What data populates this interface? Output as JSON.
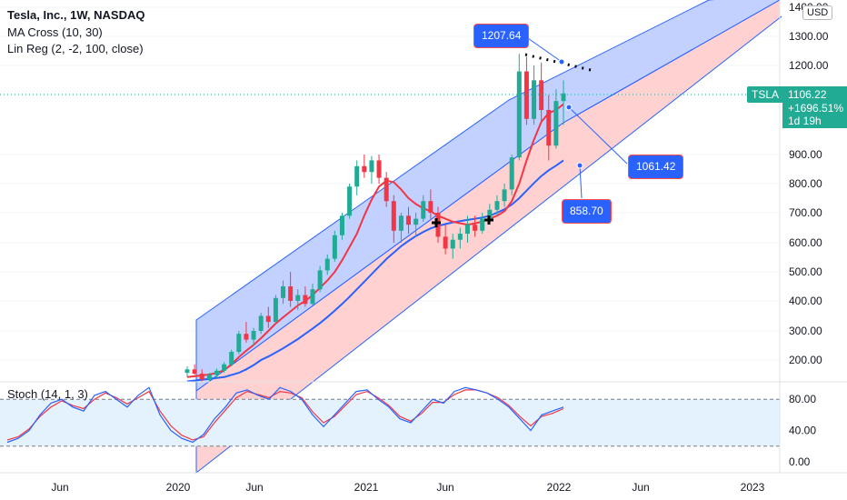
{
  "legend": {
    "title": "Tesla, Inc., 1W, NASDAQ",
    "ma": "MA Cross (10, 30)",
    "linreg": "Lin Reg (2, -2, 100, close)"
  },
  "stoch_label": "Stoch (14, 1, 3)",
  "currency": "USD",
  "symbol_tag": "TSLA",
  "current": {
    "price": "1106.22",
    "change": "+1696.51%",
    "countdown": "1d 19h"
  },
  "annotations": {
    "upper": "1207.64",
    "mid": "1061.42",
    "lower": "858.70"
  },
  "colors": {
    "up": "#22ab94",
    "down": "#f23645",
    "ma_fast": "#f23645",
    "ma_slow": "#2962ff",
    "channel_upper": "#b7c9ff",
    "channel_lower": "#ffc9c9",
    "stoch_k": "#2962ff",
    "stoch_d": "#f23645",
    "stoch_band": "#e3f2fd"
  },
  "chart_data": {
    "type": "candlestick",
    "price_axis": {
      "ticks": [
        "1400.00",
        "1300.00",
        "1200.00",
        "900.00",
        "800.00",
        "700.00",
        "600.00",
        "500.00",
        "400.00",
        "300.00",
        "200.00"
      ]
    },
    "time_axis": [
      "Jun",
      "2020",
      "Jun",
      "2021",
      "Jun",
      "2022",
      "Jun",
      "2023"
    ],
    "candles": [
      {
        "o": 170,
        "h": 185,
        "l": 160,
        "c": 178
      },
      {
        "o": 178,
        "h": 190,
        "l": 165,
        "c": 168
      },
      {
        "o": 168,
        "h": 178,
        "l": 150,
        "c": 155
      },
      {
        "o": 155,
        "h": 170,
        "l": 148,
        "c": 165
      },
      {
        "o": 165,
        "h": 180,
        "l": 158,
        "c": 175
      },
      {
        "o": 175,
        "h": 195,
        "l": 170,
        "c": 190
      },
      {
        "o": 190,
        "h": 235,
        "l": 185,
        "c": 228
      },
      {
        "o": 228,
        "h": 300,
        "l": 220,
        "c": 290
      },
      {
        "o": 290,
        "h": 330,
        "l": 260,
        "c": 270
      },
      {
        "o": 270,
        "h": 310,
        "l": 250,
        "c": 300
      },
      {
        "o": 300,
        "h": 360,
        "l": 290,
        "c": 350
      },
      {
        "o": 350,
        "h": 380,
        "l": 310,
        "c": 330
      },
      {
        "o": 330,
        "h": 420,
        "l": 320,
        "c": 410
      },
      {
        "o": 410,
        "h": 470,
        "l": 390,
        "c": 450
      },
      {
        "o": 450,
        "h": 500,
        "l": 380,
        "c": 400
      },
      {
        "o": 400,
        "h": 440,
        "l": 370,
        "c": 420
      },
      {
        "o": 420,
        "h": 450,
        "l": 380,
        "c": 390
      },
      {
        "o": 390,
        "h": 460,
        "l": 385,
        "c": 440
      },
      {
        "o": 440,
        "h": 520,
        "l": 430,
        "c": 505
      },
      {
        "o": 505,
        "h": 560,
        "l": 490,
        "c": 545
      },
      {
        "o": 545,
        "h": 640,
        "l": 535,
        "c": 625
      },
      {
        "o": 625,
        "h": 700,
        "l": 610,
        "c": 690
      },
      {
        "o": 690,
        "h": 800,
        "l": 680,
        "c": 790
      },
      {
        "o": 790,
        "h": 880,
        "l": 760,
        "c": 860
      },
      {
        "o": 860,
        "h": 900,
        "l": 820,
        "c": 840
      },
      {
        "o": 840,
        "h": 895,
        "l": 800,
        "c": 880
      },
      {
        "o": 880,
        "h": 900,
        "l": 800,
        "c": 820
      },
      {
        "o": 820,
        "h": 840,
        "l": 720,
        "c": 740
      },
      {
        "o": 740,
        "h": 760,
        "l": 600,
        "c": 640
      },
      {
        "o": 640,
        "h": 700,
        "l": 600,
        "c": 690
      },
      {
        "o": 690,
        "h": 720,
        "l": 630,
        "c": 660
      },
      {
        "o": 660,
        "h": 700,
        "l": 620,
        "c": 680
      },
      {
        "o": 680,
        "h": 760,
        "l": 670,
        "c": 740
      },
      {
        "o": 740,
        "h": 780,
        "l": 680,
        "c": 700
      },
      {
        "o": 700,
        "h": 720,
        "l": 600,
        "c": 620
      },
      {
        "o": 620,
        "h": 660,
        "l": 560,
        "c": 580
      },
      {
        "o": 580,
        "h": 630,
        "l": 545,
        "c": 610
      },
      {
        "o": 610,
        "h": 650,
        "l": 580,
        "c": 630
      },
      {
        "o": 630,
        "h": 690,
        "l": 600,
        "c": 660
      },
      {
        "o": 660,
        "h": 690,
        "l": 620,
        "c": 640
      },
      {
        "o": 640,
        "h": 700,
        "l": 630,
        "c": 680
      },
      {
        "o": 680,
        "h": 730,
        "l": 660,
        "c": 710
      },
      {
        "o": 710,
        "h": 760,
        "l": 690,
        "c": 740
      },
      {
        "o": 740,
        "h": 800,
        "l": 720,
        "c": 780
      },
      {
        "o": 780,
        "h": 900,
        "l": 760,
        "c": 890
      },
      {
        "o": 890,
        "h": 1240,
        "l": 880,
        "c": 1180
      },
      {
        "o": 1180,
        "h": 1230,
        "l": 1000,
        "c": 1020
      },
      {
        "o": 1020,
        "h": 1200,
        "l": 1000,
        "c": 1150
      },
      {
        "o": 1150,
        "h": 1210,
        "l": 1010,
        "c": 1050
      },
      {
        "o": 1050,
        "h": 1100,
        "l": 880,
        "c": 930
      },
      {
        "o": 930,
        "h": 1120,
        "l": 920,
        "c": 1080
      },
      {
        "o": 1080,
        "h": 1150,
        "l": 1000,
        "c": 1106
      }
    ],
    "ma_fast": [
      160,
      162,
      164,
      166,
      170,
      176,
      190,
      210,
      232,
      252,
      275,
      300,
      325,
      345,
      365,
      385,
      400,
      420,
      445,
      470,
      500,
      540,
      585,
      630,
      690,
      745,
      790,
      810,
      805,
      780,
      750,
      730,
      715,
      705,
      690,
      680,
      670,
      665,
      660,
      665,
      670,
      680,
      690,
      705,
      740,
      800,
      880,
      950,
      1010,
      1040,
      1050,
      1070
    ],
    "ma_slow": [
      150,
      152,
      154,
      156,
      158,
      160,
      165,
      170,
      178,
      188,
      200,
      212,
      226,
      240,
      256,
      272,
      290,
      308,
      326,
      346,
      368,
      390,
      414,
      440,
      466,
      492,
      518,
      544,
      566,
      588,
      606,
      622,
      636,
      648,
      656,
      662,
      668,
      672,
      676,
      680,
      684,
      690,
      700,
      712,
      728,
      750,
      776,
      802,
      826,
      846,
      862,
      880
    ],
    "stochastic": {
      "k": [
        25,
        30,
        40,
        60,
        75,
        80,
        70,
        65,
        85,
        90,
        80,
        70,
        85,
        95,
        60,
        40,
        30,
        25,
        35,
        55,
        70,
        88,
        92,
        85,
        80,
        95,
        90,
        80,
        60,
        45,
        60,
        75,
        90,
        92,
        80,
        70,
        55,
        50,
        65,
        80,
        75,
        90,
        95,
        92,
        88,
        80,
        70,
        55,
        40,
        60,
        65,
        70
      ],
      "d": [
        28,
        32,
        42,
        58,
        70,
        78,
        72,
        68,
        80,
        88,
        82,
        74,
        82,
        90,
        65,
        46,
        34,
        28,
        32,
        50,
        66,
        82,
        90,
        86,
        82,
        90,
        88,
        82,
        64,
        50,
        58,
        72,
        86,
        90,
        82,
        72,
        58,
        52,
        62,
        76,
        76,
        86,
        92,
        92,
        88,
        82,
        72,
        58,
        46,
        58,
        62,
        68
      ],
      "ticks": [
        "80.00",
        "40.00",
        "0.00"
      ]
    }
  }
}
